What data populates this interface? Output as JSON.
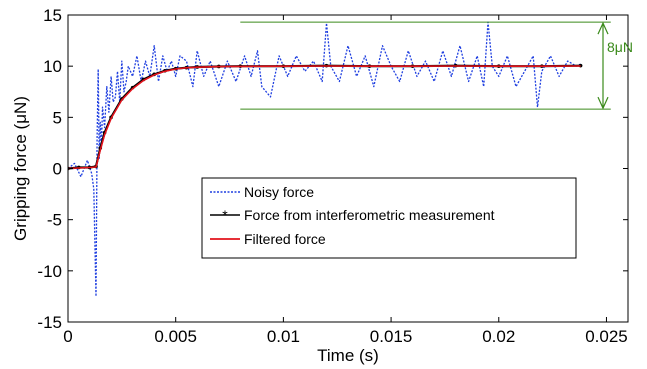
{
  "colors": {
    "noisy": "#1f3fe0",
    "interferometric": "#000000",
    "filtered": "#e3121b",
    "annotation": "#3a8a1a"
  },
  "chart_data": {
    "type": "line",
    "xlabel": "Time (s)",
    "ylabel": "Gripping force (μN)",
    "xlim": [
      0,
      0.026
    ],
    "ylim": [
      -15,
      15
    ],
    "xticks": [
      0,
      0.005,
      0.01,
      0.015,
      0.02,
      0.025
    ],
    "xtick_labels": [
      "0",
      "0.005",
      "0.01",
      "0.015",
      "0.02",
      "0.025"
    ],
    "yticks": [
      -15,
      -10,
      -5,
      0,
      5,
      10,
      15
    ],
    "ytick_labels": [
      "-15",
      "-10",
      "-5",
      "0",
      "5",
      "10",
      "15"
    ],
    "grid": false,
    "legend_position": "center-right",
    "legend": [
      {
        "label": "Noisy force",
        "style": "dotted"
      },
      {
        "label": "Force from interferometric measurement",
        "style": "line-marker"
      },
      {
        "label": "Filtered force",
        "style": "solid"
      }
    ],
    "series": [
      {
        "name": "Noisy force",
        "x": [
          0,
          0.0003,
          0.0006,
          0.0009,
          0.0011,
          0.0012,
          0.0013,
          0.00135,
          0.0014,
          0.00145,
          0.0015,
          0.00155,
          0.0016,
          0.0017,
          0.0018,
          0.0019,
          0.002,
          0.0021,
          0.0022,
          0.0023,
          0.0024,
          0.0025,
          0.0026,
          0.0027,
          0.0028,
          0.003,
          0.0032,
          0.0034,
          0.0036,
          0.0038,
          0.004,
          0.0042,
          0.0044,
          0.0046,
          0.0048,
          0.005,
          0.0052,
          0.0055,
          0.0058,
          0.006,
          0.0063,
          0.0066,
          0.007,
          0.0074,
          0.0078,
          0.0082,
          0.0085,
          0.0088,
          0.009,
          0.0094,
          0.0098,
          0.0102,
          0.0106,
          0.011,
          0.0114,
          0.0118,
          0.012,
          0.0122,
          0.0126,
          0.013,
          0.0134,
          0.0138,
          0.0142,
          0.0146,
          0.015,
          0.0154,
          0.0158,
          0.0162,
          0.0166,
          0.017,
          0.0174,
          0.0178,
          0.0182,
          0.0186,
          0.019,
          0.0193,
          0.0195,
          0.0197,
          0.02,
          0.0204,
          0.0208,
          0.0212,
          0.0216,
          0.0218,
          0.022,
          0.0224,
          0.0228,
          0.0232,
          0.0236,
          0.0238
        ],
        "y": [
          0.0,
          0.5,
          -0.8,
          0.8,
          -0.5,
          -2.0,
          -12.5,
          3.0,
          9.7,
          1.0,
          4.5,
          2.0,
          6.0,
          4.0,
          8.0,
          5.5,
          9.0,
          6.5,
          7.0,
          9.5,
          6.5,
          10.5,
          7.5,
          8.5,
          10.0,
          9.0,
          11.0,
          8.5,
          10.5,
          9.0,
          12.0,
          8.5,
          11.0,
          9.5,
          10.5,
          9.0,
          11.0,
          10.5,
          8.0,
          11.5,
          9.0,
          10.5,
          8.0,
          10.5,
          8.5,
          11.0,
          9.0,
          11.5,
          8.0,
          7.0,
          11.0,
          9.0,
          11.0,
          9.5,
          10.5,
          8.5,
          14.2,
          10.0,
          8.5,
          12.0,
          9.0,
          11.0,
          8.0,
          12.0,
          10.0,
          8.5,
          11.5,
          9.0,
          10.5,
          8.5,
          11.5,
          9.0,
          12.0,
          8.5,
          11.0,
          8.0,
          14.3,
          10.0,
          9.0,
          11.0,
          8.0,
          9.5,
          11.0,
          6.0,
          9.5,
          11.0,
          9.0,
          10.5,
          10.0,
          10.2
        ]
      },
      {
        "name": "Force from interferometric measurement",
        "x": [
          0,
          0.0005,
          0.001,
          0.0013,
          0.0015,
          0.0017,
          0.002,
          0.0025,
          0.003,
          0.0035,
          0.004,
          0.0045,
          0.005,
          0.0055,
          0.006,
          0.007,
          0.008,
          0.01,
          0.012,
          0.014,
          0.016,
          0.018,
          0.02,
          0.022,
          0.0238
        ],
        "y": [
          0.0,
          0.1,
          0.1,
          0.2,
          2.0,
          3.5,
          5.0,
          6.8,
          7.9,
          8.7,
          9.2,
          9.55,
          9.75,
          9.85,
          9.92,
          9.97,
          10.0,
          10.0,
          10.05,
          10.0,
          10.0,
          10.05,
          10.0,
          10.0,
          10.05
        ]
      },
      {
        "name": "Filtered force",
        "x": [
          0,
          0.0005,
          0.001,
          0.0013,
          0.0015,
          0.0017,
          0.002,
          0.0025,
          0.003,
          0.0035,
          0.004,
          0.0045,
          0.005,
          0.0055,
          0.006,
          0.007,
          0.008,
          0.01,
          0.012,
          0.014,
          0.016,
          0.018,
          0.02,
          0.022,
          0.0238
        ],
        "y": [
          0.0,
          0.05,
          0.1,
          0.15,
          1.8,
          3.3,
          4.9,
          6.7,
          7.8,
          8.6,
          9.15,
          9.5,
          9.72,
          9.84,
          9.9,
          9.96,
          9.98,
          10.0,
          10.02,
          10.0,
          10.0,
          10.02,
          10.0,
          10.0,
          10.02
        ]
      }
    ],
    "annotation": {
      "label": "8μN",
      "y_top": 14.3,
      "y_bottom": 5.8,
      "x_start": 0.008,
      "x_end": 0.0252
    }
  }
}
